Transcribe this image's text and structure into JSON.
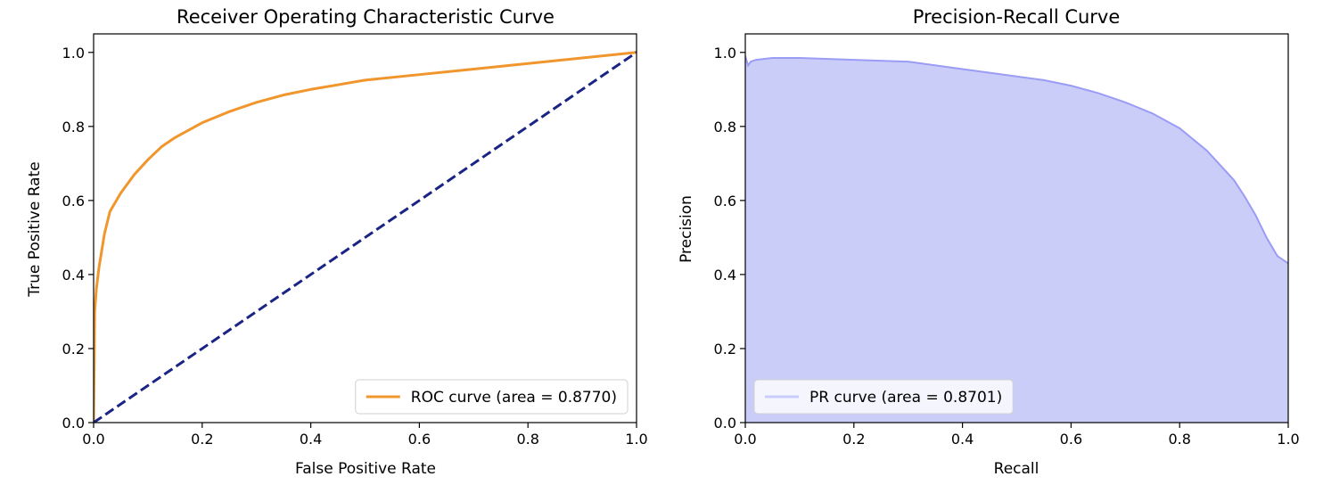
{
  "chart_data": [
    {
      "type": "line",
      "title": "Receiver Operating Characteristic Curve",
      "xlabel": "False Positive Rate",
      "ylabel": "True Positive Rate",
      "xlim": [
        0.0,
        1.0
      ],
      "ylim": [
        0.0,
        1.05
      ],
      "xticks": [
        "0.0",
        "0.2",
        "0.4",
        "0.6",
        "0.8",
        "1.0"
      ],
      "yticks": [
        "0.0",
        "0.2",
        "0.4",
        "0.6",
        "0.8",
        "1.0"
      ],
      "legend_position": "lower-right",
      "grid": false,
      "series": [
        {
          "name": "ROC curve (area = 0.8770)",
          "color": "#f0962d",
          "style": "solid",
          "x": [
            0.0,
            0.002,
            0.005,
            0.01,
            0.02,
            0.03,
            0.05,
            0.075,
            0.1,
            0.125,
            0.15,
            0.2,
            0.25,
            0.3,
            0.35,
            0.4,
            0.5,
            0.6,
            0.7,
            0.8,
            0.9,
            1.0
          ],
          "y": [
            0.0,
            0.3,
            0.36,
            0.42,
            0.51,
            0.57,
            0.62,
            0.67,
            0.71,
            0.745,
            0.77,
            0.81,
            0.84,
            0.865,
            0.885,
            0.9,
            0.925,
            0.94,
            0.955,
            0.97,
            0.985,
            1.0
          ]
        },
        {
          "name": "",
          "color": "#1a2485",
          "style": "dashed",
          "x": [
            0.0,
            1.0
          ],
          "y": [
            0.0,
            1.0
          ]
        }
      ]
    },
    {
      "type": "area",
      "title": "Precision-Recall Curve",
      "xlabel": "Recall",
      "ylabel": "Precision",
      "xlim": [
        0.0,
        1.0
      ],
      "ylim": [
        0.0,
        1.05
      ],
      "xticks": [
        "0.0",
        "0.2",
        "0.4",
        "0.6",
        "0.8",
        "1.0"
      ],
      "yticks": [
        "0.0",
        "0.2",
        "0.4",
        "0.6",
        "0.8",
        "1.0"
      ],
      "legend_position": "lower-left",
      "grid": false,
      "series": [
        {
          "name": "PR curve (area = 0.8701)",
          "color": "#9a9cf5",
          "fill": "#cbcdf9",
          "x": [
            0.0,
            0.005,
            0.01,
            0.02,
            0.05,
            0.1,
            0.2,
            0.3,
            0.4,
            0.45,
            0.5,
            0.55,
            0.6,
            0.65,
            0.7,
            0.75,
            0.8,
            0.85,
            0.9,
            0.92,
            0.94,
            0.96,
            0.98,
            1.0
          ],
          "y": [
            0.99,
            0.965,
            0.975,
            0.98,
            0.985,
            0.985,
            0.98,
            0.975,
            0.955,
            0.945,
            0.935,
            0.925,
            0.91,
            0.89,
            0.865,
            0.835,
            0.795,
            0.735,
            0.655,
            0.61,
            0.56,
            0.5,
            0.45,
            0.43
          ]
        }
      ]
    }
  ]
}
